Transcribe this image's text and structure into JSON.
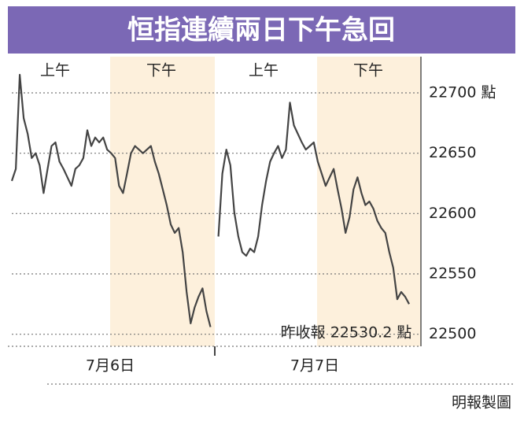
{
  "chart_data": {
    "type": "line",
    "title": "恒指連續兩日下午急回",
    "session_labels": [
      "上午",
      "下午",
      "上午",
      "下午"
    ],
    "day_labels": [
      "7月6日",
      "7月7日"
    ],
    "annotation": "昨收報 22530.2 點",
    "source": "明報製圖",
    "color": "#444444",
    "values": [
      22627,
      22637,
      22715,
      22679,
      22666,
      22646,
      22650,
      22640,
      22617,
      22637,
      22656,
      22659,
      22643,
      22637,
      22630,
      22623,
      22637,
      22640,
      22646,
      22669,
      22656,
      22663,
      22659,
      22663,
      22653,
      22650,
      22646,
      22623,
      22617,
      22633,
      22650,
      22656,
      22653,
      22650,
      22653,
      22656,
      22643,
      22633,
      22620,
      22607,
      22591,
      22584,
      22588,
      22568,
      22535,
      22509,
      22522,
      22531,
      22538,
      22519,
      22506,
      null,
      22581,
      22633,
      22653,
      22640,
      22601,
      22581,
      22568,
      22565,
      22571,
      22568,
      22581,
      22607,
      22627,
      22643,
      22650,
      22656,
      22646,
      22653,
      22692,
      22673,
      22666,
      22659,
      22653,
      22656,
      22659,
      22643,
      22633,
      22623,
      22630,
      22637,
      22620,
      22604,
      22584,
      22597,
      22620,
      22630,
      22617,
      22607,
      22610,
      22604,
      22594,
      22588,
      22584,
      22568,
      22555,
      22529,
      22535,
      22531,
      22525
    ],
    "ylim": [
      22490,
      22730
    ],
    "yticks": [
      22500,
      22550,
      22600,
      22650,
      {
        "value": 22700,
        "label": "22700 點"
      }
    ],
    "grid": true
  }
}
